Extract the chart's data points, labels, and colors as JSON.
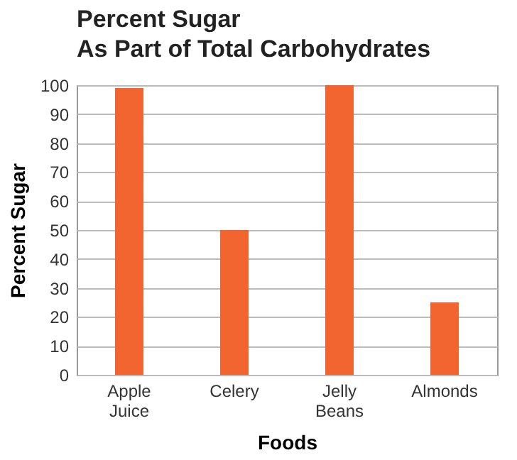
{
  "chart_data": {
    "type": "bar",
    "title": "Percent Sugar\nAs Part of Total Carbohydrates",
    "xlabel": "Foods",
    "ylabel": "Percent Sugar",
    "categories": [
      "Apple Juice",
      "Celery",
      "Jelly Beans",
      "Almonds"
    ],
    "values": [
      99,
      50,
      100,
      25
    ],
    "color": "#f26430",
    "ylim": [
      0,
      100
    ],
    "yticks": [
      0,
      10,
      20,
      30,
      40,
      50,
      60,
      70,
      80,
      90,
      100
    ],
    "grid": "y"
  }
}
